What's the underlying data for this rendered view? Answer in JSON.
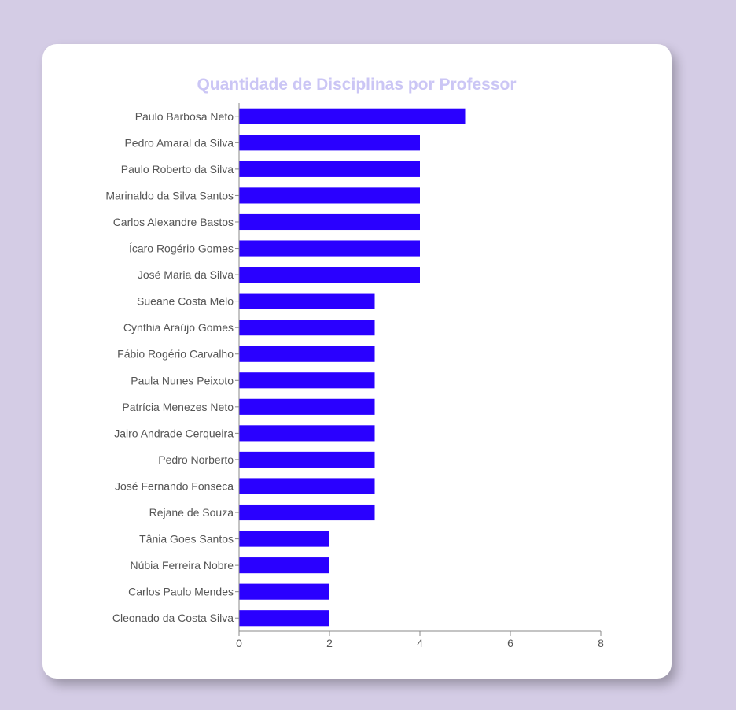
{
  "chart_data": {
    "type": "bar",
    "orientation": "horizontal",
    "title": "Quantidade de Disciplinas por Professor",
    "xlabel": "",
    "ylabel": "",
    "xlim": [
      0,
      8
    ],
    "x_ticks": [
      "0",
      "2",
      "4",
      "6",
      "8"
    ],
    "bar_color": "#2a00ff",
    "categories": [
      "Paulo Barbosa Neto",
      "Pedro Amaral da Silva",
      "Paulo Roberto da Silva",
      "Marinaldo da Silva Santos",
      "Carlos Alexandre Bastos",
      "Ícaro Rogério Gomes",
      "José Maria da Silva",
      "Sueane Costa Melo",
      "Cynthia Araújo Gomes",
      "Fábio Rogério Carvalho",
      "Paula Nunes Peixoto",
      "Patrícia Menezes Neto",
      "Jairo Andrade Cerqueira",
      "Pedro Norberto",
      "José Fernando Fonseca",
      "Rejane de Souza",
      "Tânia Goes Santos",
      "Núbia Ferreira Nobre",
      "Carlos Paulo Mendes",
      "Cleonado da Costa Silva"
    ],
    "values": [
      5,
      4,
      4,
      4,
      4,
      4,
      4,
      3,
      3,
      3,
      3,
      3,
      3,
      3,
      3,
      3,
      2,
      2,
      2,
      2
    ],
    "grid": false
  },
  "colors": {
    "background": "#d4cce5",
    "card": "#ffffff",
    "title": "#cbc6f5"
  }
}
